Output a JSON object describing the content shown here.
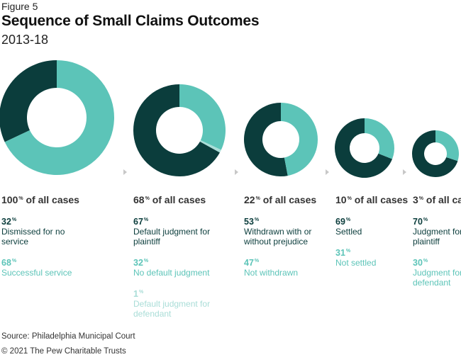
{
  "figure_label": "Figure 5",
  "title": "Sequence of Small Claims Outcomes",
  "subtitle": "2013-18",
  "chart_data": {
    "type": "pie",
    "colors": {
      "dark": "#0b3d3c",
      "teal": "#5cc4b8",
      "light": "#a9ddd7"
    },
    "stages": [
      {
        "share": 100,
        "share_suffix": "% of all cases",
        "slices": [
          {
            "value": 32,
            "label": "Dismissed for no service",
            "color": "dark"
          },
          {
            "value": 68,
            "label": "Successful service",
            "color": "teal"
          }
        ]
      },
      {
        "share": 68,
        "share_suffix": "% of all cases",
        "slices": [
          {
            "value": 67,
            "label": "Default judgment for plaintiff",
            "color": "dark"
          },
          {
            "value": 32,
            "label": "No default judgment",
            "color": "teal"
          },
          {
            "value": 1,
            "label": "Default judgment for defendant",
            "color": "light"
          }
        ]
      },
      {
        "share": 22,
        "share_suffix": "% of all cases",
        "slices": [
          {
            "value": 53,
            "label": "Withdrawn with or without prejudice",
            "color": "dark"
          },
          {
            "value": 47,
            "label": "Not withdrawn",
            "color": "teal"
          }
        ]
      },
      {
        "share": 10,
        "share_suffix": "% of all cases",
        "slices": [
          {
            "value": 69,
            "label": "Settled",
            "color": "dark"
          },
          {
            "value": 31,
            "label": "Not settled",
            "color": "teal"
          }
        ]
      },
      {
        "share": 3,
        "share_suffix": "% of all cases",
        "slices": [
          {
            "value": 70,
            "label": "Judgment for plaintiff",
            "color": "dark"
          },
          {
            "value": 30,
            "label": "Judgment for defendant",
            "color": "teal"
          }
        ]
      }
    ]
  },
  "source": "Source: Philadelphia Municipal Court",
  "copyright": "© 2021 The Pew Charitable Trusts"
}
